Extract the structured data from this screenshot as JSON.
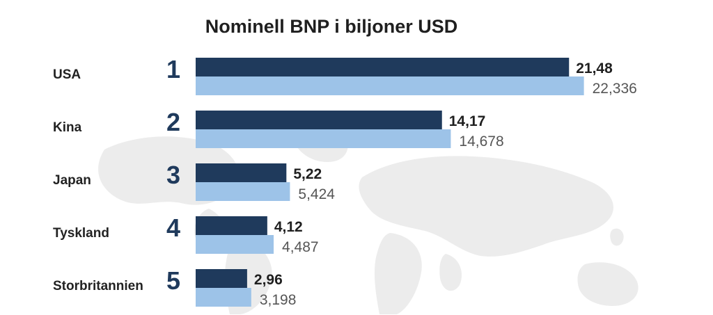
{
  "chart_data": {
    "type": "bar",
    "title": "Nominell BNP i biljoner USD",
    "categories": [
      "USA",
      "Kina",
      "Japan",
      "Tyskland",
      "Storbritannien"
    ],
    "ranks": [
      "1",
      "2",
      "3",
      "4",
      "5"
    ],
    "series": [
      {
        "values": [
          21.48,
          14.17,
          5.22,
          4.12,
          2.96
        ],
        "labels": [
          "21,48",
          "14,17",
          "5,22",
          "4,12",
          "2,96"
        ],
        "color": "#1f3a5c"
      },
      {
        "values": [
          22.336,
          14.678,
          5.424,
          4.487,
          3.198
        ],
        "labels": [
          "22,336",
          "14,678",
          "5,424",
          "4,487",
          "3,198"
        ],
        "color": "#9dc3e8"
      }
    ],
    "xlim": [
      0,
      28.6
    ],
    "grid": false,
    "legend": "none",
    "colors": {
      "country_text": "#222222",
      "rank_text": "#1f3a5c",
      "label_dark": "#1f1f1f",
      "label_light": "#555555",
      "map": "#ececec"
    }
  }
}
